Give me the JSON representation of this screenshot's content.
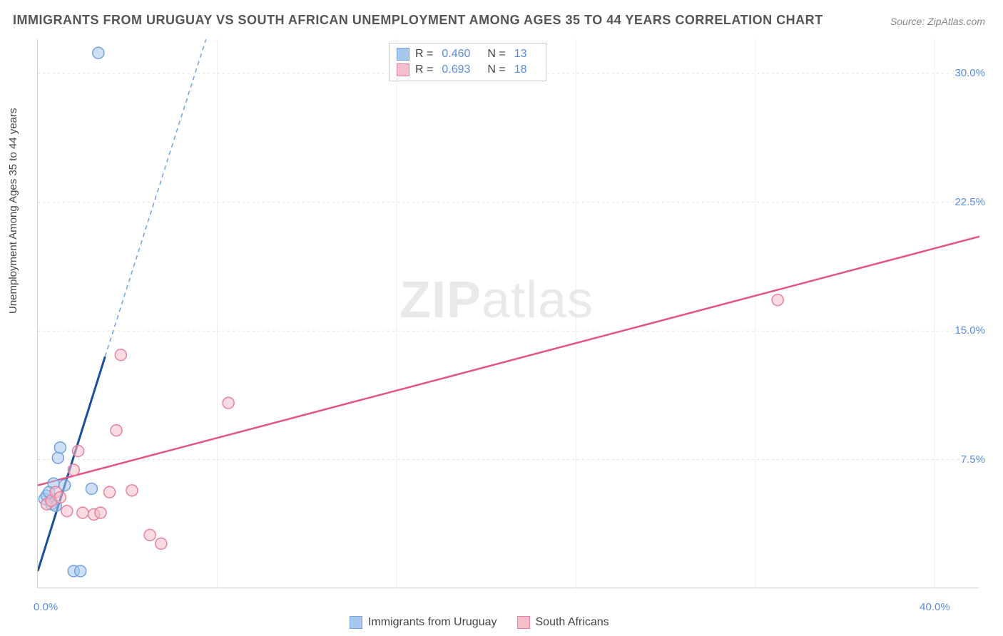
{
  "title": "IMMIGRANTS FROM URUGUAY VS SOUTH AFRICAN UNEMPLOYMENT AMONG AGES 35 TO 44 YEARS CORRELATION CHART",
  "source": "Source: ZipAtlas.com",
  "y_axis_label": "Unemployment Among Ages 35 to 44 years",
  "watermark_a": "ZIP",
  "watermark_b": "atlas",
  "chart": {
    "type": "scatter",
    "background_color": "#ffffff",
    "grid_color": "#e0e0e0",
    "axis_color": "#d0d0d0",
    "tick_label_color": "#5b8dd6",
    "xlim": [
      0,
      42
    ],
    "ylim": [
      0,
      32
    ],
    "yticks": [
      7.5,
      15.0,
      22.5,
      30.0
    ],
    "ytick_labels": [
      "7.5%",
      "15.0%",
      "22.5%",
      "30.0%"
    ],
    "xticks": [
      0,
      40
    ],
    "xtick_labels": [
      "0.0%",
      "40.0%"
    ],
    "x_gridlines": [
      8,
      16,
      24,
      32,
      40
    ],
    "marker_radius": 8,
    "marker_alpha": 0.55,
    "series": [
      {
        "name": "Immigrants from Uruguay",
        "color_fill": "#a7c7ee",
        "color_stroke": "#6fa3e0",
        "trend_color": "#1b4f9c",
        "trend_dash_color": "#6fa3e0",
        "R": "0.460",
        "N": "13",
        "points": [
          [
            0.3,
            5.2
          ],
          [
            0.4,
            5.4
          ],
          [
            0.6,
            4.9
          ],
          [
            0.7,
            6.1
          ],
          [
            0.9,
            7.6
          ],
          [
            1.0,
            8.2
          ],
          [
            1.2,
            6.0
          ],
          [
            1.6,
            1.0
          ],
          [
            1.9,
            1.0
          ],
          [
            2.4,
            5.8
          ],
          [
            2.7,
            31.2
          ],
          [
            0.5,
            5.6
          ],
          [
            0.8,
            4.8
          ]
        ],
        "trend": {
          "x1": 0,
          "y1": 1.0,
          "x2": 3.0,
          "y2": 13.5,
          "dash_x2": 7.5,
          "dash_y2": 32
        }
      },
      {
        "name": "South Africans",
        "color_fill": "#f4bfcb",
        "color_stroke": "#e97fa0",
        "trend_color": "#e05584",
        "R": "0.693",
        "N": "18",
        "points": [
          [
            0.4,
            4.9
          ],
          [
            0.6,
            5.1
          ],
          [
            0.8,
            5.6
          ],
          [
            1.0,
            5.3
          ],
          [
            1.3,
            4.5
          ],
          [
            1.6,
            6.9
          ],
          [
            1.8,
            8.0
          ],
          [
            2.0,
            4.4
          ],
          [
            2.5,
            4.3
          ],
          [
            2.8,
            4.4
          ],
          [
            3.2,
            5.6
          ],
          [
            3.5,
            9.2
          ],
          [
            3.7,
            13.6
          ],
          [
            4.2,
            5.7
          ],
          [
            5.0,
            3.1
          ],
          [
            5.5,
            2.6
          ],
          [
            8.5,
            10.8
          ],
          [
            33.0,
            16.8
          ]
        ],
        "trend": {
          "x1": 0,
          "y1": 6.0,
          "x2": 42,
          "y2": 20.5
        }
      }
    ]
  },
  "legend_top": {
    "r_label": "R =",
    "n_label": "N ="
  },
  "axis_labels": {
    "x0": "0.0%",
    "x40": "40.0%"
  }
}
